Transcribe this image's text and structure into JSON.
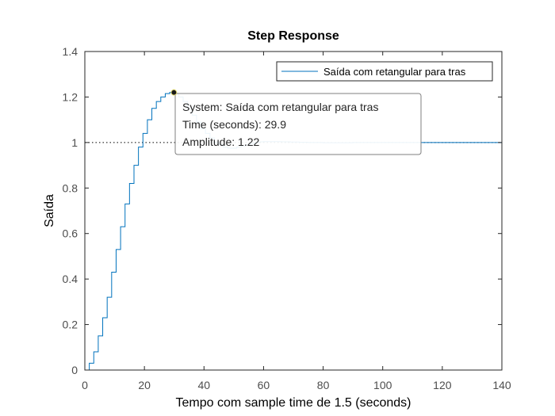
{
  "chart_data": {
    "type": "line",
    "style": "step",
    "title": "Step Response",
    "xlabel": "Tempo com sample time de 1.5 (seconds)",
    "ylabel": "Saída",
    "xlim": [
      0,
      140
    ],
    "ylim": [
      0,
      1.4
    ],
    "xticks": [
      0,
      20,
      40,
      60,
      80,
      100,
      120,
      140
    ],
    "yticks": [
      0,
      0.2,
      0.4,
      0.6,
      0.8,
      1,
      1.2,
      1.4
    ],
    "xtick_labels": [
      "0",
      "20",
      "40",
      "60",
      "80",
      "100",
      "120",
      "140"
    ],
    "ytick_labels": [
      "0",
      "0.2",
      "0.4",
      "0.6",
      "0.8",
      "1",
      "1.2",
      "1.4"
    ],
    "grid": false,
    "legend_position": "top-right",
    "reference_line": {
      "y": 1,
      "style": "dotted",
      "color": "#000000"
    },
    "series": [
      {
        "name": "Saída com retangular para tras",
        "color": "#0072bd",
        "x": [
          0,
          1.5,
          3,
          4.5,
          6,
          7.5,
          9,
          10.5,
          12,
          13.5,
          15,
          16.5,
          18,
          19.5,
          21,
          22.5,
          24,
          25.5,
          27,
          28.5,
          30,
          31.5,
          33,
          34.5,
          36,
          37.5,
          39,
          40.5,
          42,
          43.5,
          45,
          46.5,
          48,
          49.5,
          51,
          52.5,
          54,
          55.5,
          57,
          58.5,
          60,
          63,
          66,
          69,
          72,
          75,
          80,
          85,
          90,
          95,
          100,
          105,
          110,
          115,
          120,
          125,
          130,
          135,
          140
        ],
        "y": [
          0,
          0.03,
          0.08,
          0.15,
          0.23,
          0.32,
          0.43,
          0.53,
          0.63,
          0.73,
          0.82,
          0.9,
          0.98,
          1.04,
          1.1,
          1.15,
          1.18,
          1.2,
          1.215,
          1.22,
          1.215,
          1.2,
          1.18,
          1.15,
          1.12,
          1.09,
          1.06,
          1.04,
          1.02,
          1.0,
          0.99,
          0.98,
          0.975,
          0.975,
          0.98,
          0.985,
          0.99,
          0.995,
          1.0,
          1.003,
          1.004,
          1.004,
          1.003,
          1.002,
          1.001,
          1.0,
          0.999,
          0.999,
          1.0,
          1.0,
          1.0,
          1.0,
          1.0,
          1.0,
          1.0,
          1.0,
          1.0,
          1.0,
          1.0
        ]
      }
    ],
    "datatip": {
      "x": 29.9,
      "y": 1.22,
      "line1": "System: Saída com retangular para tras",
      "line2": "Time (seconds): 29.9",
      "line3": "Amplitude: 1.22"
    }
  }
}
